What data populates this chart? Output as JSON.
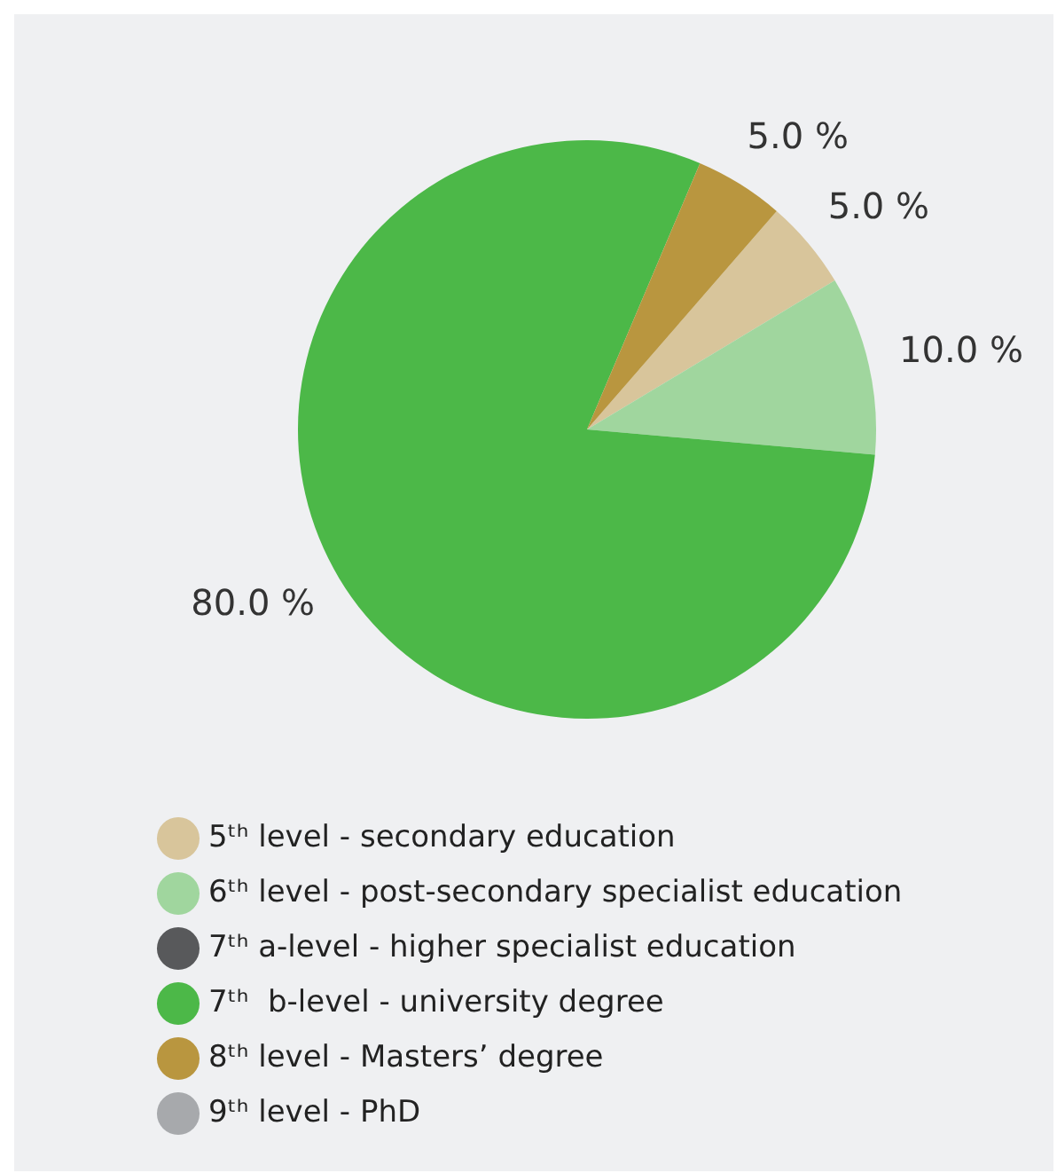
{
  "chart_data": {
    "type": "pie",
    "categories": [
      "5ᵗʰ level - secondary education",
      "6ᵗʰ level - post-secondary specialist education",
      "7ᵗʰ a-level - higher specialist education",
      "7ᵗʰ  b-level - university degree",
      "8ᵗʰ level - Masters’ degree",
      "9ᵗʰ level - PhD"
    ],
    "values": [
      5,
      10,
      0,
      80,
      5,
      0
    ],
    "colors": [
      "#d8c59b",
      "#a0d69e",
      "#58595b",
      "#4cb848",
      "#b9963f",
      "#a7a9ac"
    ],
    "value_labels": [
      "5.0 %",
      "10.0 %",
      null,
      "80.0 %",
      "5.0 %",
      null
    ],
    "legend": "bottom"
  }
}
